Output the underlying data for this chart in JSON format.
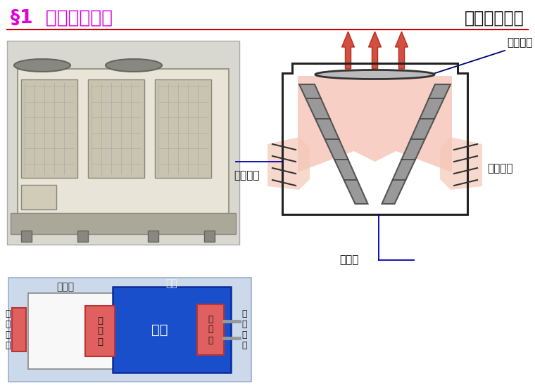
{
  "title_left": "§1  空调基本知识",
  "title_right": "风冷热泵机组",
  "title_left_color": "#dd00dd",
  "title_right_color": "#111111",
  "bg_color": "#ffffff",
  "separator_color": "#cc0000",
  "label_axial_fan": "轴流风机",
  "label_outdoor_air": "室外空气",
  "label_condenser_coil": "冷凝盘管",
  "label_subcooler": "过冷器",
  "label_chilled_water": "冷冻水",
  "label_refrigerant": "冷媒",
  "label_ac_terminal": "空\n调\n末\n端",
  "label_evaporator": "蒸\n发\n器",
  "label_main_unit": "主机",
  "label_condenser": "冷\n凝\n器",
  "label_outdoor_air2": "室\n外\n空\n气",
  "diagram_bg": "#ccd9ea",
  "box_outline_color": "#222222",
  "blue_box_color": "#1a4fcc",
  "pink_box_color": "#e06060",
  "white_box_color": "#ffffff",
  "arrow_red_color": "#cc3322",
  "air_flow_color": "#f0b0a0",
  "coil_color": "#999999",
  "coil_edge_color": "#555555",
  "heat_fill_color": "#f5c0b0",
  "fan_plate_color": "#bbbbbb"
}
